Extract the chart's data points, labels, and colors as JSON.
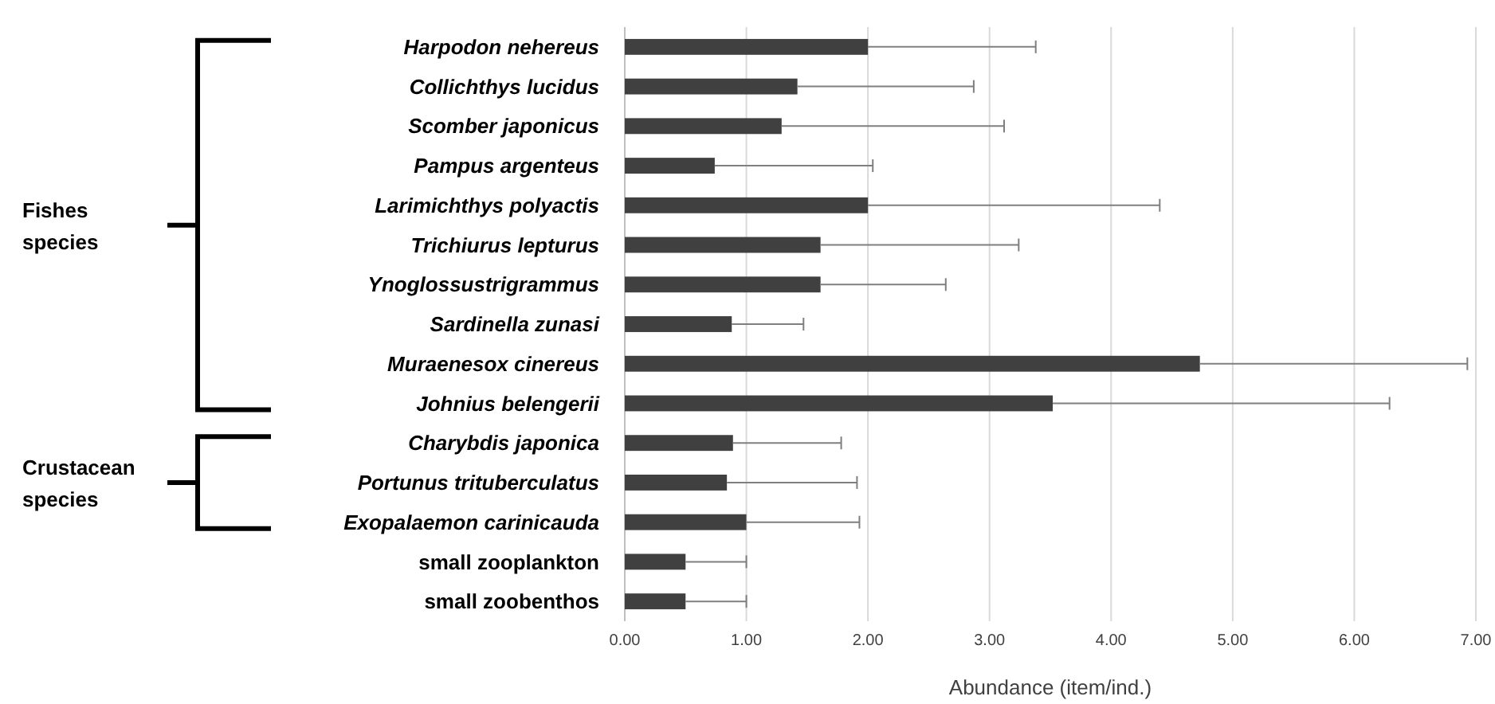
{
  "chart_data": {
    "type": "bar",
    "orientation": "horizontal",
    "xlabel": "Abundance (item/ind.)",
    "categories": [
      "Harpodon nehereus",
      "Collichthys lucidus",
      "Scomber japonicus",
      "Pampus argenteus",
      "Larimichthys polyactis",
      "Trichiurus lepturus",
      "Ynoglossustrigrammus",
      "Sardinella zunasi",
      "Muraenesox cinereus",
      "Johnius belengerii",
      "Charybdis japonica",
      "Portunus trituberculatus",
      "Exopalaemon carinicauda",
      "small zooplankton",
      "small zoobenthos"
    ],
    "values": [
      2.0,
      1.42,
      1.29,
      0.74,
      2.0,
      1.61,
      1.61,
      0.88,
      4.73,
      3.52,
      0.89,
      0.84,
      1.0,
      0.5,
      0.5
    ],
    "errors": [
      [
        2.0,
        3.38
      ],
      [
        1.42,
        2.87
      ],
      [
        1.29,
        3.12
      ],
      [
        0.74,
        2.04
      ],
      [
        2.0,
        4.4
      ],
      [
        1.61,
        3.24
      ],
      [
        1.61,
        2.64
      ],
      [
        0.88,
        1.47
      ],
      [
        4.73,
        6.93
      ],
      [
        3.52,
        6.29
      ],
      [
        0.89,
        1.78
      ],
      [
        0.84,
        1.91
      ],
      [
        1.0,
        1.93
      ],
      [
        0.5,
        1.0
      ],
      [
        0.5,
        1.0
      ]
    ],
    "color": "#404040",
    "xlim": [
      0,
      7
    ],
    "xticks": [
      {
        "value": 0,
        "label": "0.00"
      },
      {
        "value": 1,
        "label": "1.00"
      },
      {
        "value": 2,
        "label": "2.00"
      },
      {
        "value": 3,
        "label": "3.00"
      },
      {
        "value": 4,
        "label": "4.00"
      },
      {
        "value": 5,
        "label": "5.00"
      },
      {
        "value": 6,
        "label": "6.00"
      },
      {
        "value": 7,
        "label": "7.00"
      }
    ],
    "grid": "x",
    "annotations": [
      "Fishes species",
      "Crustacean species"
    ]
  }
}
